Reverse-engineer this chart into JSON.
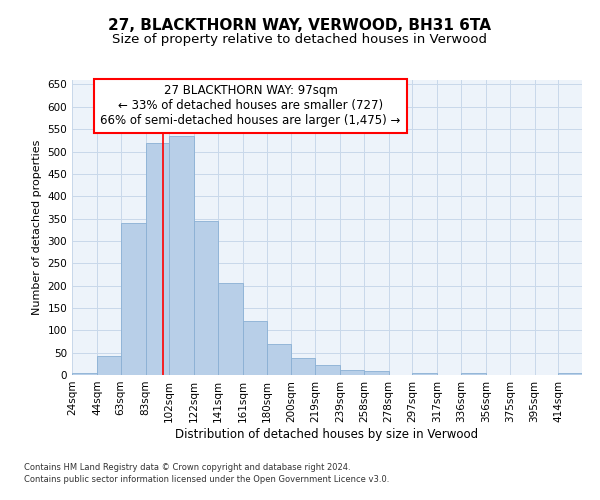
{
  "title1": "27, BLACKTHORN WAY, VERWOOD, BH31 6TA",
  "title2": "Size of property relative to detached houses in Verwood",
  "xlabel": "Distribution of detached houses by size in Verwood",
  "ylabel": "Number of detached properties",
  "footnote1": "Contains HM Land Registry data © Crown copyright and database right 2024.",
  "footnote2": "Contains public sector information licensed under the Open Government Licence v3.0.",
  "annotation_line1": "27 BLACKTHORN WAY: 97sqm",
  "annotation_line2": "← 33% of detached houses are smaller (727)",
  "annotation_line3": "66% of semi-detached houses are larger (1,475) →",
  "property_size": 97,
  "bin_labels": [
    "24sqm",
    "44sqm",
    "63sqm",
    "83sqm",
    "102sqm",
    "122sqm",
    "141sqm",
    "161sqm",
    "180sqm",
    "200sqm",
    "219sqm",
    "239sqm",
    "258sqm",
    "278sqm",
    "297sqm",
    "317sqm",
    "336sqm",
    "356sqm",
    "375sqm",
    "395sqm",
    "414sqm"
  ],
  "bin_edges": [
    24,
    44,
    63,
    83,
    102,
    122,
    141,
    161,
    180,
    200,
    219,
    239,
    258,
    278,
    297,
    317,
    336,
    356,
    375,
    395,
    414
  ],
  "bar_heights": [
    5,
    42,
    340,
    520,
    535,
    345,
    205,
    120,
    70,
    38,
    22,
    12,
    10,
    0,
    5,
    0,
    4,
    0,
    0,
    0,
    5
  ],
  "bar_color": "#b8cfe8",
  "bar_edgecolor": "#8ab0d4",
  "redline_x": 97,
  "ylim": [
    0,
    660
  ],
  "yticks": [
    0,
    50,
    100,
    150,
    200,
    250,
    300,
    350,
    400,
    450,
    500,
    550,
    600,
    650
  ],
  "grid_color": "#c8d8ea",
  "bg_color": "#edf3fa",
  "title1_fontsize": 11,
  "title2_fontsize": 9.5,
  "annotation_fontsize": 8.5,
  "xlabel_fontsize": 8.5,
  "ylabel_fontsize": 8,
  "tick_fontsize": 7.5,
  "footnote_fontsize": 6
}
